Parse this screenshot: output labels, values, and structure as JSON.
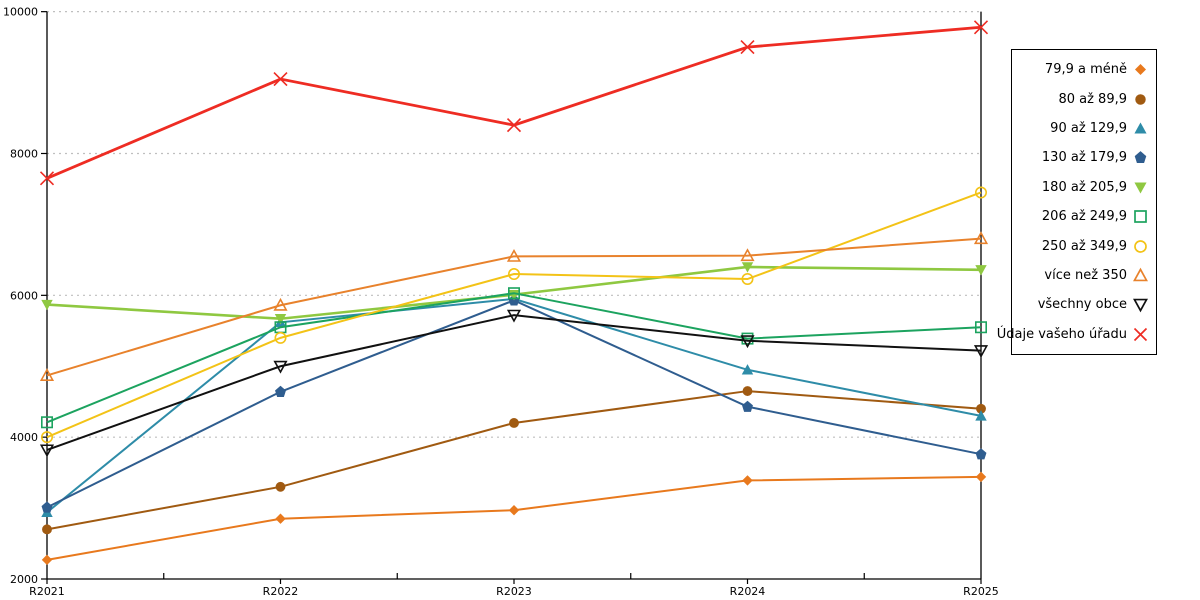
{
  "chart_data": {
    "type": "line",
    "title": "",
    "xlabel": "",
    "ylabel": "",
    "x_categories": [
      "R2021",
      "R2022",
      "R2023",
      "R2024",
      "R2025"
    ],
    "y_ticks": [
      2000,
      4000,
      6000,
      8000,
      10000
    ],
    "ylim": [
      2000,
      10000
    ],
    "grid": "horizontal-dotted",
    "legend_position": "right",
    "series": [
      {
        "name": "79,9 a méně",
        "color": "#E8791D",
        "marker": "diamond-filled",
        "values": [
          2270,
          2850,
          2970,
          3390,
          3440
        ]
      },
      {
        "name": "80 až 89,9",
        "color": "#A05A11",
        "marker": "circle-filled",
        "values": [
          2700,
          3300,
          4200,
          4650,
          4400
        ]
      },
      {
        "name": "90 až 129,9",
        "color": "#2E8CA8",
        "marker": "triangle-up-filled",
        "values": [
          2940,
          5620,
          5950,
          4950,
          4300
        ]
      },
      {
        "name": "130 až 179,9",
        "color": "#2F5D8F",
        "marker": "pentagon-filled",
        "values": [
          3010,
          4640,
          5930,
          4430,
          3760
        ]
      },
      {
        "name": "180 až 205,9",
        "color": "#8FC841",
        "marker": "triangle-down-filled",
        "values": [
          5870,
          5670,
          6010,
          6400,
          6360
        ]
      },
      {
        "name": "206 až 249,9",
        "color": "#1CA35F",
        "marker": "square-open",
        "values": [
          4210,
          5550,
          6030,
          5390,
          5550
        ]
      },
      {
        "name": "250 až 349,9",
        "color": "#F3C317",
        "marker": "circle-open",
        "values": [
          4000,
          5400,
          6300,
          6230,
          7450
        ]
      },
      {
        "name": "více než 350",
        "color": "#E8822C",
        "marker": "triangle-up-open",
        "values": [
          4870,
          5860,
          6550,
          6560,
          6800
        ]
      },
      {
        "name": "všechny obce",
        "color": "#111111",
        "marker": "triangle-down-open",
        "values": [
          3820,
          5000,
          5720,
          5360,
          5220
        ]
      },
      {
        "name": "Údaje vašeho úřadu",
        "color": "#EE2C23",
        "marker": "x",
        "values": [
          7650,
          9050,
          8400,
          9500,
          9780
        ]
      }
    ],
    "colors": {
      "background": "#FFFFFF",
      "gridline": "#BFBFBF",
      "axis": "#000000"
    }
  }
}
